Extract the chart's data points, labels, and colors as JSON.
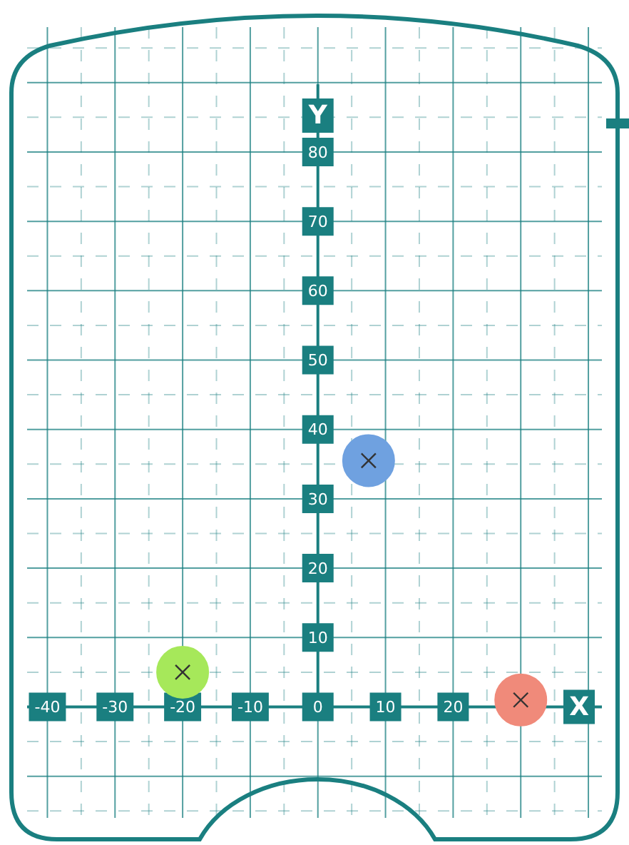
{
  "chart_data": {
    "type": "scatter",
    "xlabel": "X",
    "ylabel": "Y",
    "x": [
      7.5,
      -20,
      30
    ],
    "values": [
      35.5,
      5,
      1
    ],
    "colors": [
      "#6fa1e0",
      "#a6e85a",
      "#f08a7a"
    ],
    "xlim": [
      -43,
      42
    ],
    "ylim": [
      -16,
      98
    ],
    "xticks": [
      -40,
      {
        "value": -35,
        "label": null
      },
      -30,
      {
        "value": -25,
        "label": null
      },
      -20,
      {
        "value": -15,
        "label": null
      },
      -10,
      {
        "value": -5,
        "label": null
      },
      0,
      {
        "value": 5,
        "label": null
      },
      10,
      {
        "value": 15,
        "label": null
      },
      20,
      {
        "value": 25,
        "label": null
      },
      {
        "value": 35,
        "label": null
      }
    ],
    "yticks": [
      {
        "value": -15,
        "label": null
      },
      {
        "value": -5,
        "label": null
      },
      {
        "value": 5,
        "label": null
      },
      10,
      {
        "value": 15,
        "label": null
      },
      20,
      {
        "value": 25,
        "label": null
      },
      30,
      {
        "value": 35,
        "label": null
      },
      40,
      {
        "value": 45,
        "label": null
      },
      50,
      {
        "value": 55,
        "label": null
      },
      60,
      {
        "value": 65,
        "label": null
      },
      70,
      {
        "value": 75,
        "label": null
      },
      80,
      {
        "value": 85,
        "label": null
      },
      {
        "value": 95,
        "label": null
      }
    ],
    "grid": true,
    "marker": "circle"
  }
}
